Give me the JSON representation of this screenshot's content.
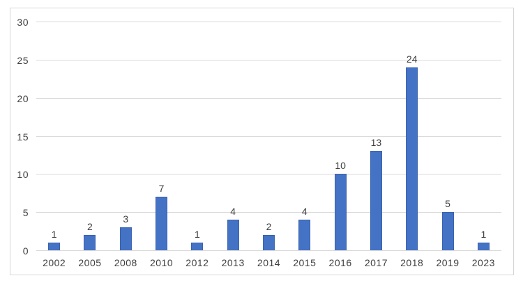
{
  "chart_data": {
    "type": "bar",
    "title": "",
    "categories": [
      "2002",
      "2005",
      "2008",
      "2010",
      "2012",
      "2013",
      "2014",
      "2015",
      "2016",
      "2017",
      "2018",
      "2019",
      "2023"
    ],
    "values": [
      1,
      2,
      3,
      7,
      1,
      4,
      2,
      4,
      10,
      13,
      24,
      5,
      1
    ],
    "xlabel": "",
    "ylabel": "",
    "ylim": [
      0,
      30
    ],
    "yticks": [
      0,
      5,
      10,
      15,
      20,
      25,
      30
    ],
    "grid": true,
    "legend": false,
    "data_labels": true,
    "colors": {
      "bar_fill": "#4472C4",
      "bar_border": "#3A62AE",
      "gridline": "#D9D9D9",
      "axis_line": "#D9D9D9",
      "tick_label": "#404040",
      "data_label": "#404040",
      "frame_border": "#D6D6D6",
      "background": "#FFFFFF"
    }
  }
}
